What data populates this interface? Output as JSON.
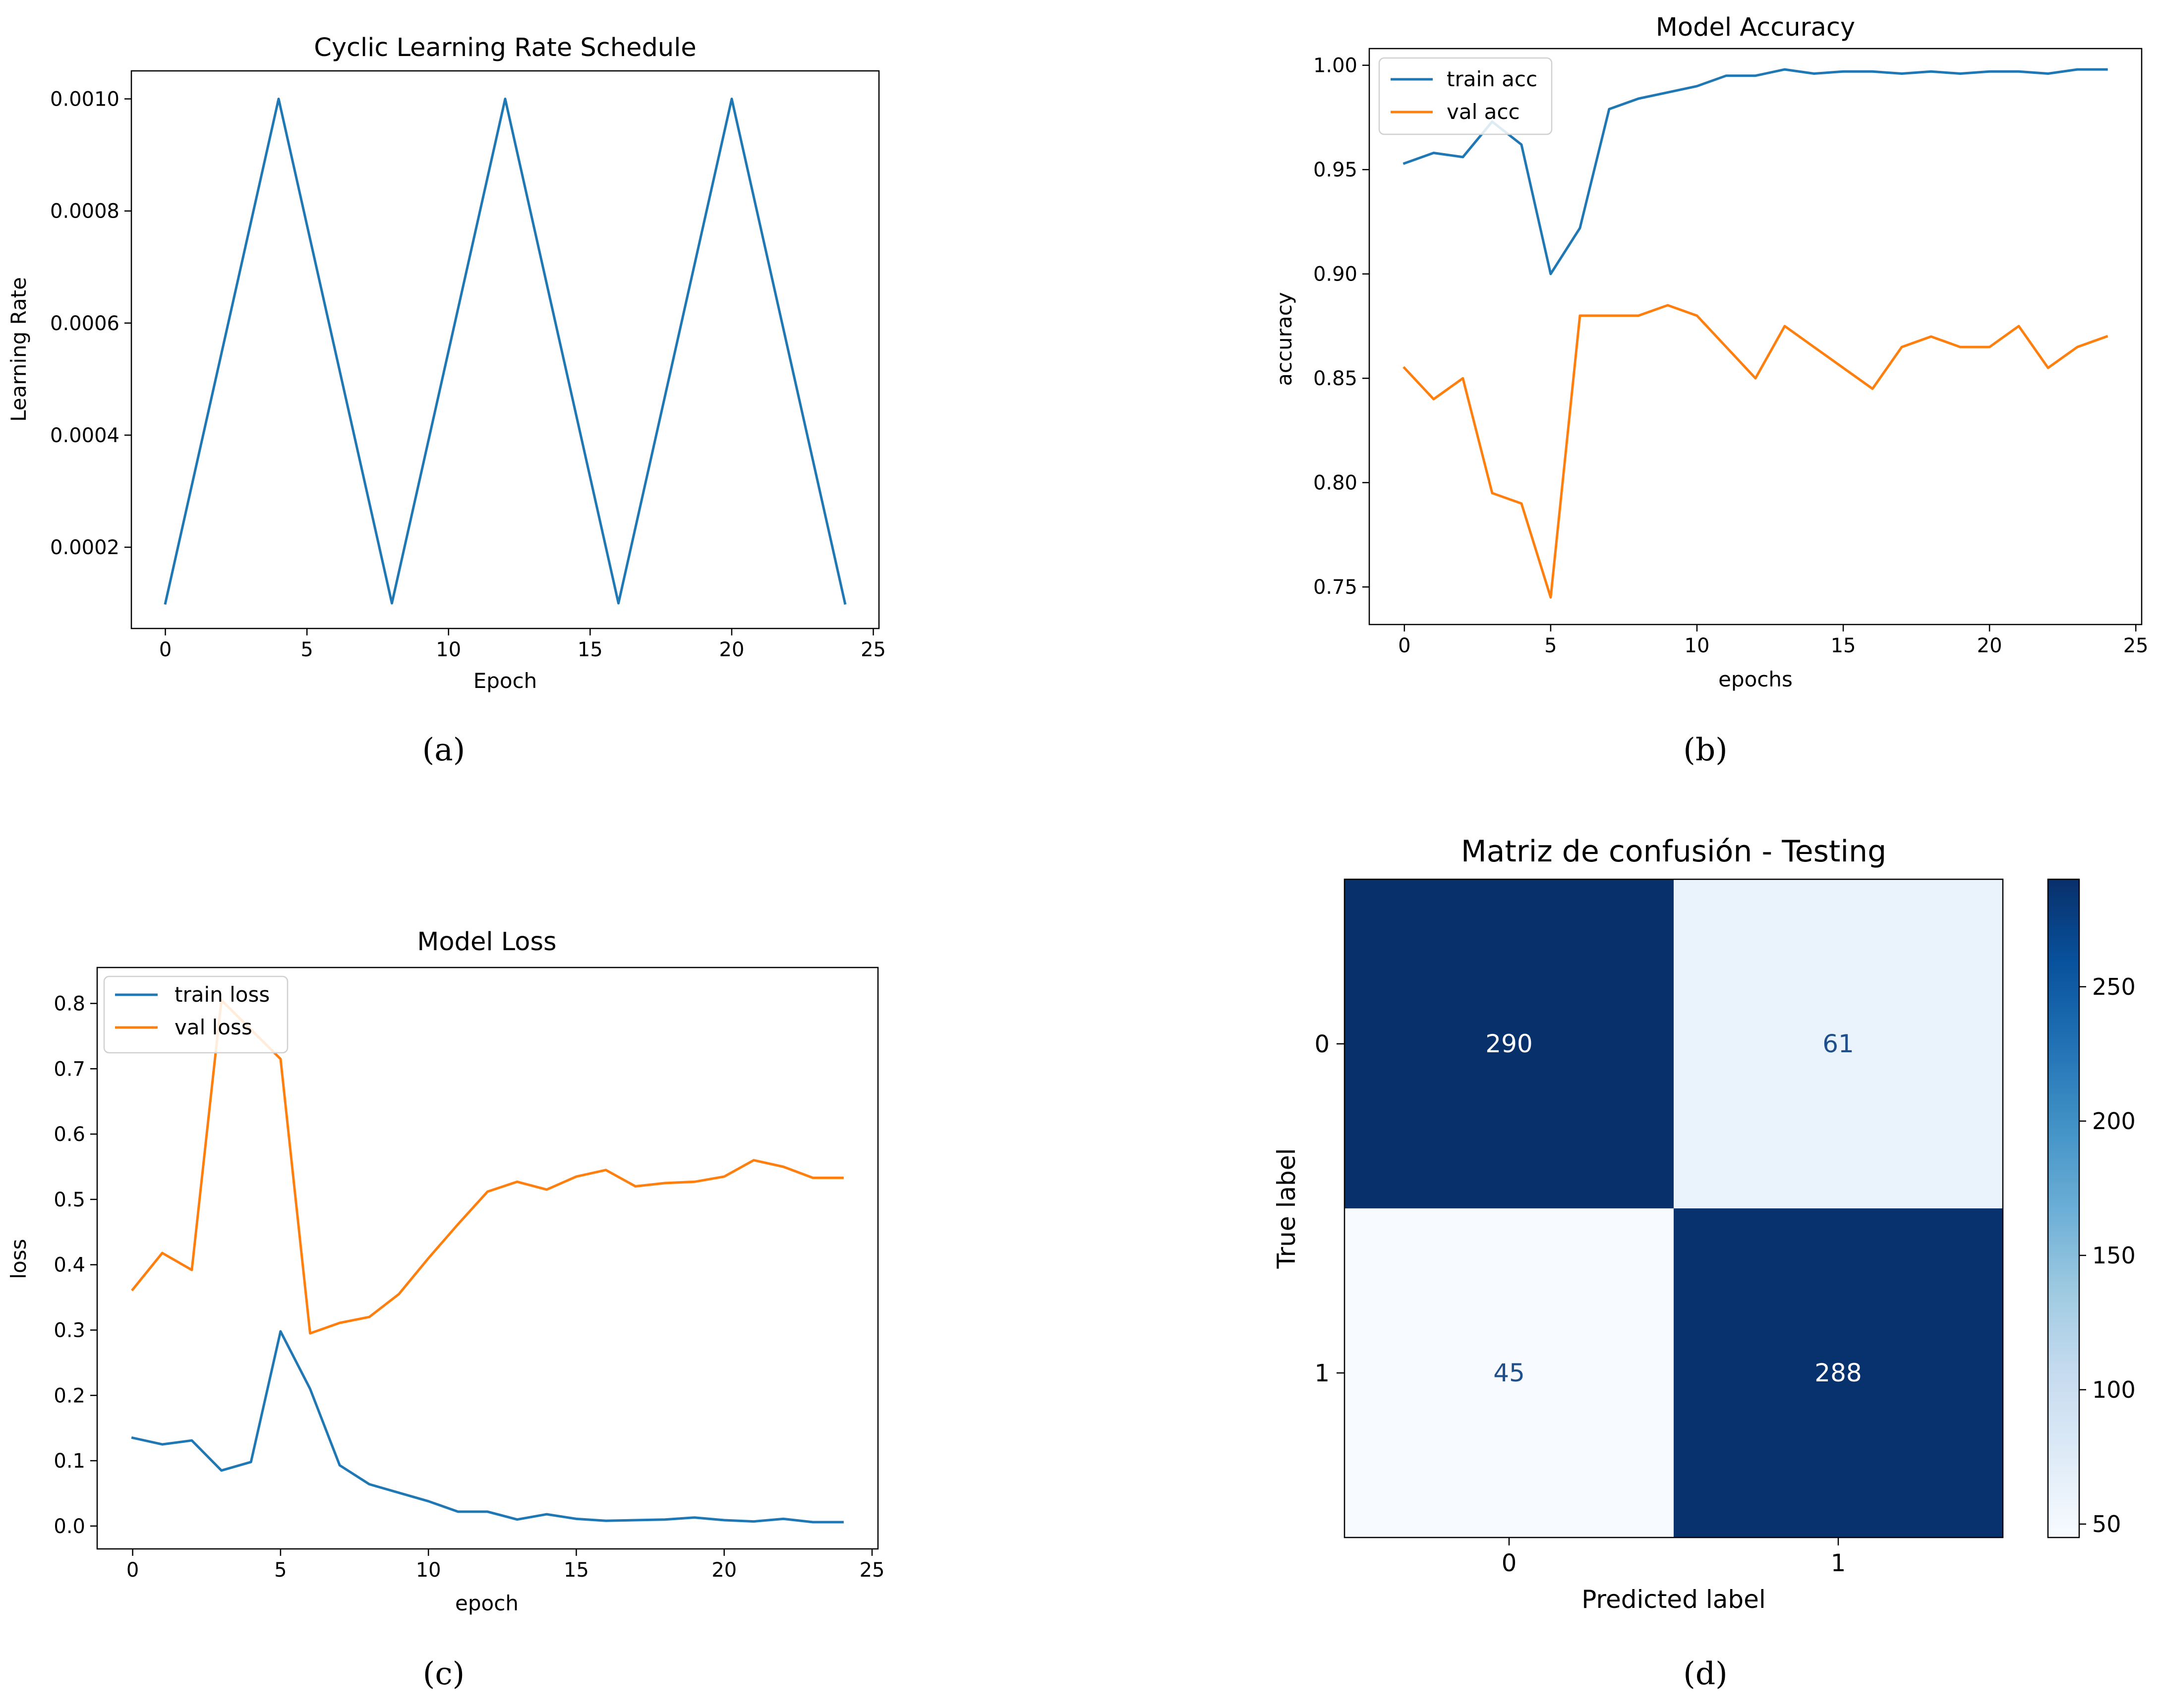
{
  "figure": {
    "captions": [
      "(a)",
      "(b)",
      "(c)",
      "(d)"
    ]
  },
  "colors": {
    "series1": "#1f77b4",
    "series2": "#ff7f0e",
    "axis": "#000000",
    "cm_low": "#f7fbff",
    "cm_high": "#08306b"
  },
  "chart_data": [
    {
      "id": "a",
      "type": "line",
      "title": "Cyclic Learning Rate Schedule",
      "xlabel": "Epoch",
      "ylabel": "Learning Rate",
      "xlim": [
        -1.2,
        25.2
      ],
      "ylim": [
        5.5e-05,
        0.00105
      ],
      "xticks": [
        0,
        5,
        10,
        15,
        20,
        25
      ],
      "xtick_labels": [
        "0",
        "5",
        "10",
        "15",
        "20",
        "25"
      ],
      "yticks": [
        0.0002,
        0.0004,
        0.0006,
        0.0008,
        0.001
      ],
      "ytick_labels": [
        "0.0002",
        "0.0004",
        "0.0006",
        "0.0008",
        "0.0010"
      ],
      "legend": null,
      "series": [
        {
          "name": "learning rate",
          "color": "#1f77b4",
          "x": [
            0,
            4,
            8,
            12,
            16,
            20,
            24
          ],
          "y": [
            0.0001,
            0.001,
            0.0001,
            0.001,
            0.0001,
            0.001,
            0.0001
          ]
        }
      ]
    },
    {
      "id": "b",
      "type": "line",
      "title": "Model Accuracy",
      "xlabel": "epochs",
      "ylabel": "accuracy",
      "xlim": [
        -1.2,
        25.2
      ],
      "ylim": [
        0.732,
        1.008
      ],
      "xticks": [
        0,
        5,
        10,
        15,
        20,
        25
      ],
      "xtick_labels": [
        "0",
        "5",
        "10",
        "15",
        "20",
        "25"
      ],
      "yticks": [
        0.75,
        0.8,
        0.85,
        0.9,
        0.95,
        1.0
      ],
      "ytick_labels": [
        "0.75",
        "0.80",
        "0.85",
        "0.90",
        "0.95",
        "1.00"
      ],
      "legend": "upper-left",
      "series": [
        {
          "name": "train acc",
          "color": "#1f77b4",
          "x": [
            0,
            1,
            2,
            3,
            4,
            5,
            6,
            7,
            8,
            9,
            10,
            11,
            12,
            13,
            14,
            15,
            16,
            17,
            18,
            19,
            20,
            21,
            22,
            23,
            24
          ],
          "y": [
            0.953,
            0.958,
            0.956,
            0.973,
            0.962,
            0.9,
            0.922,
            0.979,
            0.984,
            0.987,
            0.99,
            0.995,
            0.995,
            0.998,
            0.996,
            0.997,
            0.997,
            0.996,
            0.997,
            0.996,
            0.997,
            0.997,
            0.996,
            0.998,
            0.998
          ]
        },
        {
          "name": "val acc",
          "color": "#ff7f0e",
          "x": [
            0,
            1,
            2,
            3,
            4,
            5,
            6,
            7,
            8,
            9,
            10,
            11,
            12,
            13,
            14,
            15,
            16,
            17,
            18,
            19,
            20,
            21,
            22,
            23,
            24
          ],
          "y": [
            0.855,
            0.84,
            0.85,
            0.795,
            0.79,
            0.745,
            0.88,
            0.88,
            0.88,
            0.885,
            0.88,
            0.865,
            0.85,
            0.875,
            0.865,
            0.855,
            0.845,
            0.865,
            0.87,
            0.865,
            0.865,
            0.875,
            0.855,
            0.865,
            0.87
          ]
        }
      ]
    },
    {
      "id": "c",
      "type": "line",
      "title": "Model Loss",
      "xlabel": "epoch",
      "ylabel": "loss",
      "xlim": [
        -1.2,
        25.2
      ],
      "ylim": [
        -0.035,
        0.855
      ],
      "xticks": [
        0,
        5,
        10,
        15,
        20,
        25
      ],
      "xtick_labels": [
        "0",
        "5",
        "10",
        "15",
        "20",
        "25"
      ],
      "yticks": [
        0.0,
        0.1,
        0.2,
        0.3,
        0.4,
        0.5,
        0.6,
        0.7,
        0.8
      ],
      "ytick_labels": [
        "0.0",
        "0.1",
        "0.2",
        "0.3",
        "0.4",
        "0.5",
        "0.6",
        "0.7",
        "0.8"
      ],
      "legend": "upper-left",
      "series": [
        {
          "name": "train loss",
          "color": "#1f77b4",
          "x": [
            0,
            1,
            2,
            3,
            4,
            5,
            6,
            7,
            8,
            9,
            10,
            11,
            12,
            13,
            14,
            15,
            16,
            17,
            18,
            19,
            20,
            21,
            22,
            23,
            24
          ],
          "y": [
            0.135,
            0.125,
            0.131,
            0.085,
            0.098,
            0.298,
            0.21,
            0.093,
            0.064,
            0.051,
            0.038,
            0.022,
            0.022,
            0.01,
            0.018,
            0.011,
            0.008,
            0.009,
            0.01,
            0.013,
            0.009,
            0.007,
            0.011,
            0.006,
            0.006
          ]
        },
        {
          "name": "val loss",
          "color": "#ff7f0e",
          "x": [
            0,
            1,
            2,
            3,
            4,
            5,
            6,
            7,
            8,
            9,
            10,
            11,
            12,
            13,
            14,
            15,
            16,
            17,
            18,
            19,
            20,
            21,
            22,
            23,
            24
          ],
          "y": [
            0.362,
            0.418,
            0.392,
            0.805,
            0.76,
            0.715,
            0.295,
            0.311,
            0.32,
            0.355,
            0.41,
            0.462,
            0.512,
            0.527,
            0.515,
            0.535,
            0.545,
            0.52,
            0.525,
            0.527,
            0.535,
            0.56,
            0.55,
            0.533,
            0.533
          ]
        }
      ]
    },
    {
      "id": "d",
      "type": "heatmap",
      "title": "Matriz de confusión - Testing",
      "xlabel": "Predicted label",
      "ylabel": "True label",
      "row_labels": [
        "0",
        "1"
      ],
      "col_labels": [
        "0",
        "1"
      ],
      "values": [
        [
          290,
          61
        ],
        [
          45,
          288
        ]
      ],
      "value_labels": [
        [
          "290",
          "61"
        ],
        [
          "45",
          "288"
        ]
      ],
      "colormap": "Blues",
      "vmin": 45,
      "vmax": 290,
      "colorbar_ticks": [
        50,
        100,
        150,
        200,
        250
      ],
      "colorbar_tick_labels": [
        "50",
        "100",
        "150",
        "200",
        "250"
      ]
    }
  ]
}
